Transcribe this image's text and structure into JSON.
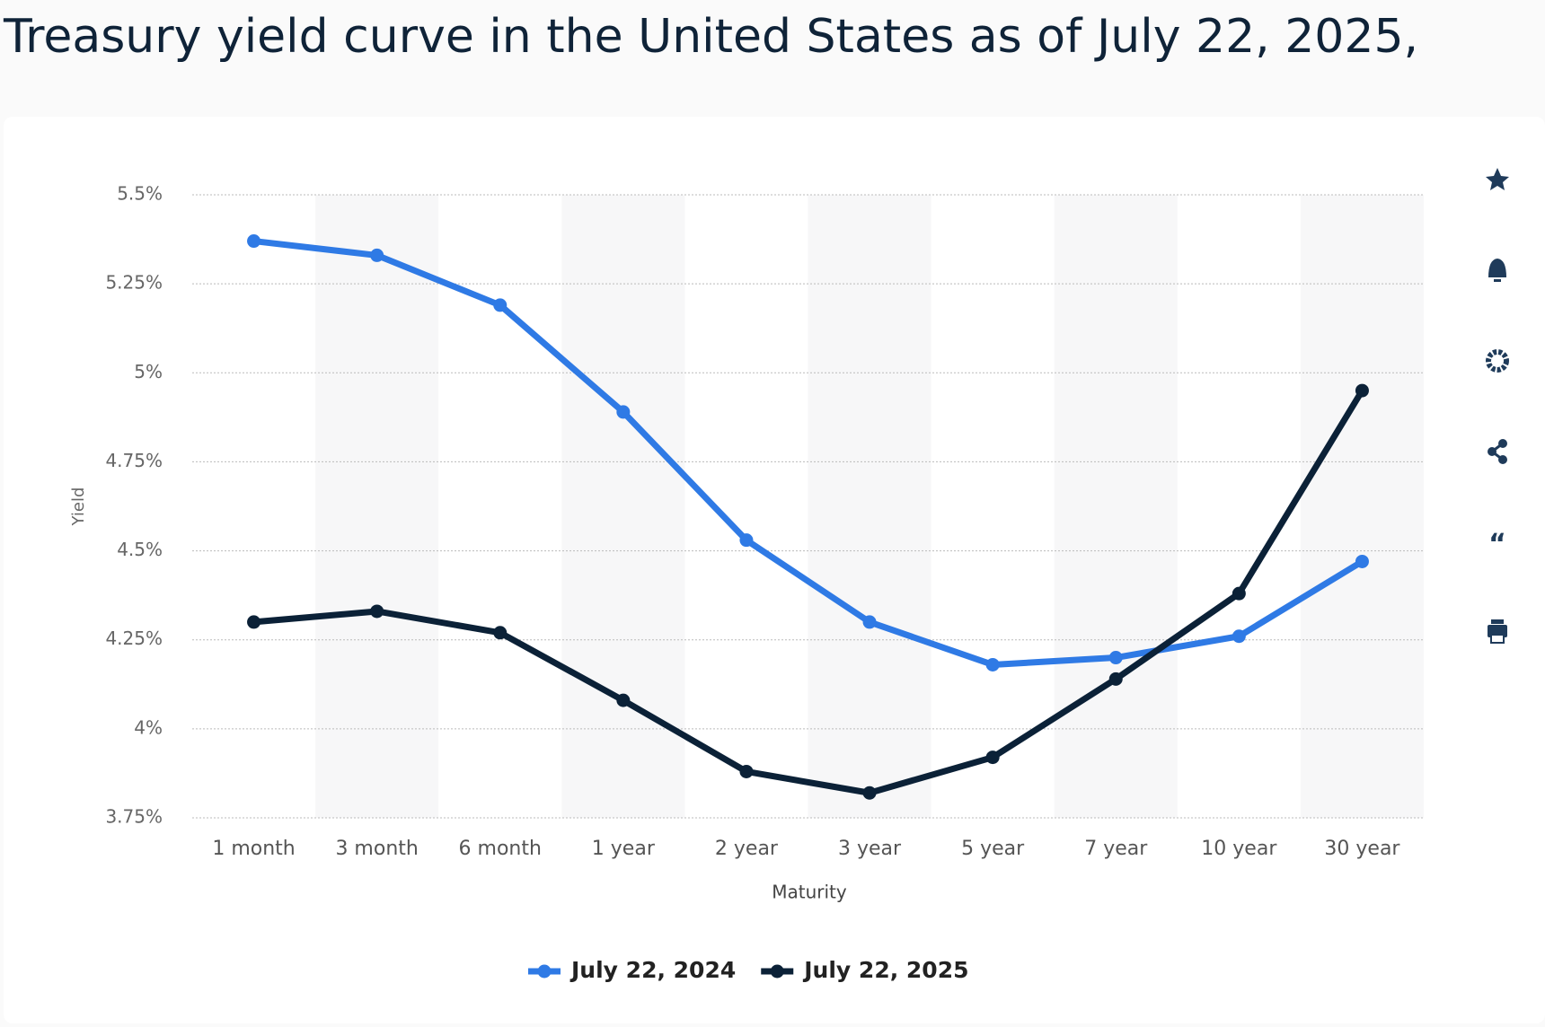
{
  "chart_data": {
    "type": "line",
    "title": "Treasury yield curve in the United States as of July 22, 2025,",
    "x_label": "Maturity",
    "y_label": "Yield",
    "categories": [
      "1 month",
      "3 month",
      "6 month",
      "1 year",
      "2 year",
      "3 year",
      "5 year",
      "7 year",
      "10 year",
      "30 year"
    ],
    "series": [
      {
        "name": "July 22, 2024",
        "color": "#2f7ae5",
        "values": [
          5.37,
          5.33,
          5.19,
          4.89,
          4.53,
          4.3,
          4.18,
          4.2,
          4.26,
          4.47
        ]
      },
      {
        "name": "July 22, 2025",
        "color": "#0b2137",
        "values": [
          4.3,
          4.33,
          4.27,
          4.08,
          3.88,
          3.82,
          3.92,
          4.14,
          4.38,
          4.95
        ]
      }
    ],
    "ylim": [
      3.75,
      5.5
    ],
    "yticks": [
      {
        "value": 3.75,
        "label": "3.75%"
      },
      {
        "value": 4,
        "label": "4%"
      },
      {
        "value": 4.25,
        "label": "4.25%"
      },
      {
        "value": 4.5,
        "label": "4.5%"
      },
      {
        "value": 4.75,
        "label": "4.75%"
      },
      {
        "value": 5,
        "label": "5%"
      },
      {
        "value": 5.25,
        "label": "5.25%"
      },
      {
        "value": 5.5,
        "label": "5.5%"
      }
    ],
    "grid": true,
    "legend": "bottom"
  }
}
